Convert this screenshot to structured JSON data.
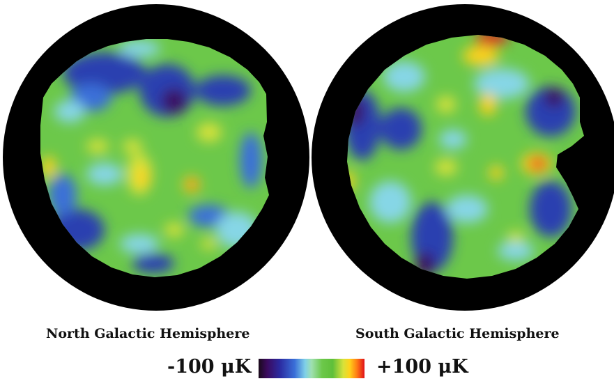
{
  "captions": {
    "north": "North Galactic Hemisphere",
    "south": "South Galactic Hemisphere"
  },
  "scale": {
    "min_label": "-100 μK",
    "max_label": "+100 μK",
    "colors": [
      "#1a0a1a",
      "#3b0a5e",
      "#2b2aa0",
      "#3a6fd8",
      "#7fd0e8",
      "#6cc84a",
      "#ffd21a",
      "#ff7a14",
      "#e0101a"
    ]
  },
  "map_colors": {
    "ring": "#000000",
    "background": "#6cc84a",
    "cold_deep": "#3b0a5e",
    "cold": "#2b3fb0",
    "cool": "#3a8ae0",
    "cyan": "#86d6e6",
    "warm": "#d8e23a",
    "hot": "#ffd21a",
    "hottest": "#e0101a"
  }
}
